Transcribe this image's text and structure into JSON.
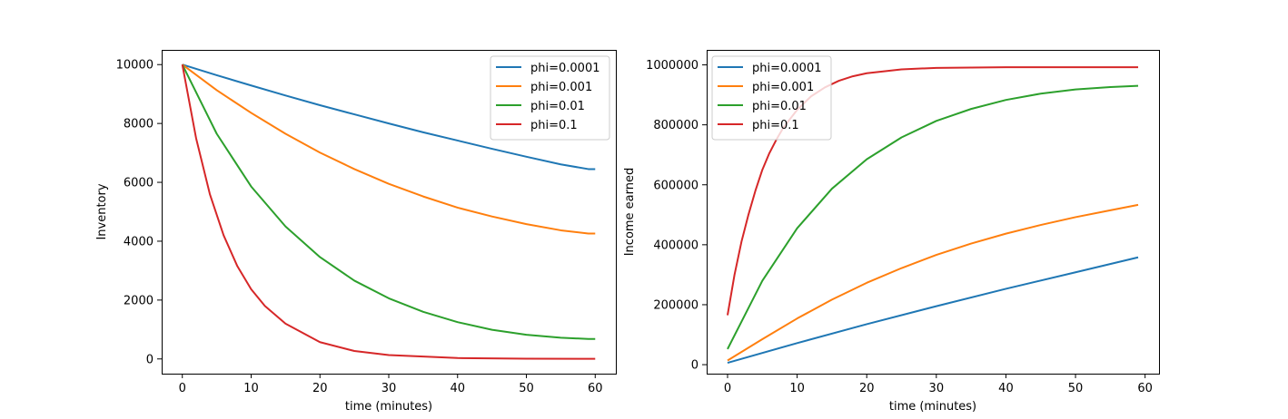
{
  "chart_data": [
    {
      "type": "line",
      "xlabel": "time (minutes)",
      "ylabel": "Inventory",
      "xlim": [
        -3,
        63
      ],
      "ylim": [
        -500,
        10500
      ],
      "xticks": [
        0,
        10,
        20,
        30,
        40,
        50,
        60
      ],
      "yticks": [
        0,
        2000,
        4000,
        6000,
        8000,
        10000
      ],
      "legend_position": "top-right",
      "grid": false,
      "series": [
        {
          "name": "phi=0.0001",
          "color": "#1f77b4",
          "x": [
            0,
            5,
            10,
            15,
            20,
            25,
            30,
            35,
            40,
            45,
            50,
            55,
            59,
            60
          ],
          "y": [
            10000,
            9640,
            9290,
            8950,
            8620,
            8310,
            8000,
            7700,
            7420,
            7140,
            6870,
            6610,
            6450,
            6450
          ]
        },
        {
          "name": "phi=0.001",
          "color": "#ff7f0e",
          "x": [
            0,
            5,
            10,
            15,
            20,
            25,
            30,
            35,
            40,
            45,
            50,
            55,
            59,
            60
          ],
          "y": [
            10000,
            9130,
            8360,
            7650,
            7010,
            6450,
            5950,
            5520,
            5140,
            4840,
            4580,
            4370,
            4260,
            4260
          ]
        },
        {
          "name": "phi=0.01",
          "color": "#2ca02c",
          "x": [
            0,
            5,
            10,
            15,
            20,
            25,
            30,
            35,
            40,
            45,
            50,
            55,
            59,
            60
          ],
          "y": [
            10000,
            7650,
            5860,
            4500,
            3460,
            2660,
            2060,
            1600,
            1250,
            990,
            820,
            720,
            680,
            680
          ]
        },
        {
          "name": "phi=0.1",
          "color": "#d62728",
          "x": [
            0,
            2,
            4,
            6,
            8,
            10,
            12,
            15,
            20,
            25,
            30,
            40,
            50,
            59,
            60
          ],
          "y": [
            10000,
            7500,
            5600,
            4200,
            3150,
            2370,
            1800,
            1200,
            570,
            270,
            130,
            30,
            10,
            5,
            5
          ]
        }
      ]
    },
    {
      "type": "line",
      "xlabel": "time (minutes)",
      "ylabel": "Income earned",
      "xlim": [
        -3,
        62
      ],
      "ylim": [
        -30000,
        1050000
      ],
      "xticks": [
        0,
        10,
        20,
        30,
        40,
        50,
        60
      ],
      "yticks": [
        0,
        200000,
        400000,
        600000,
        800000,
        1000000
      ],
      "legend_position": "top-left",
      "grid": false,
      "series": [
        {
          "name": "phi=0.0001",
          "color": "#1f77b4",
          "x": [
            0,
            10,
            20,
            30,
            40,
            50,
            59
          ],
          "y": [
            6000,
            72000,
            135000,
            195000,
            253000,
            308000,
            358000
          ]
        },
        {
          "name": "phi=0.001",
          "color": "#ff7f0e",
          "x": [
            0,
            5,
            10,
            15,
            20,
            25,
            30,
            35,
            40,
            45,
            50,
            55,
            59
          ],
          "y": [
            14000,
            85000,
            154000,
            217000,
            273000,
            322000,
            366000,
            404000,
            437000,
            466000,
            492000,
            515000,
            533000
          ]
        },
        {
          "name": "phi=0.01",
          "color": "#2ca02c",
          "x": [
            0,
            5,
            10,
            15,
            20,
            25,
            30,
            35,
            40,
            45,
            50,
            55,
            59
          ],
          "y": [
            52000,
            280000,
            455000,
            587000,
            685000,
            758000,
            813000,
            853000,
            883000,
            904000,
            918000,
            926000,
            930000
          ]
        },
        {
          "name": "phi=0.1",
          "color": "#d62728",
          "x": [
            0,
            1,
            2,
            3,
            4,
            5,
            6,
            7,
            8,
            9,
            10,
            12,
            14,
            16,
            18,
            20,
            25,
            30,
            40,
            50,
            59
          ],
          "y": [
            165000,
            300000,
            410000,
            500000,
            580000,
            650000,
            705000,
            750000,
            790000,
            820000,
            850000,
            895000,
            925000,
            947000,
            962000,
            972000,
            985000,
            990000,
            992000,
            992000,
            992000
          ]
        }
      ]
    }
  ]
}
